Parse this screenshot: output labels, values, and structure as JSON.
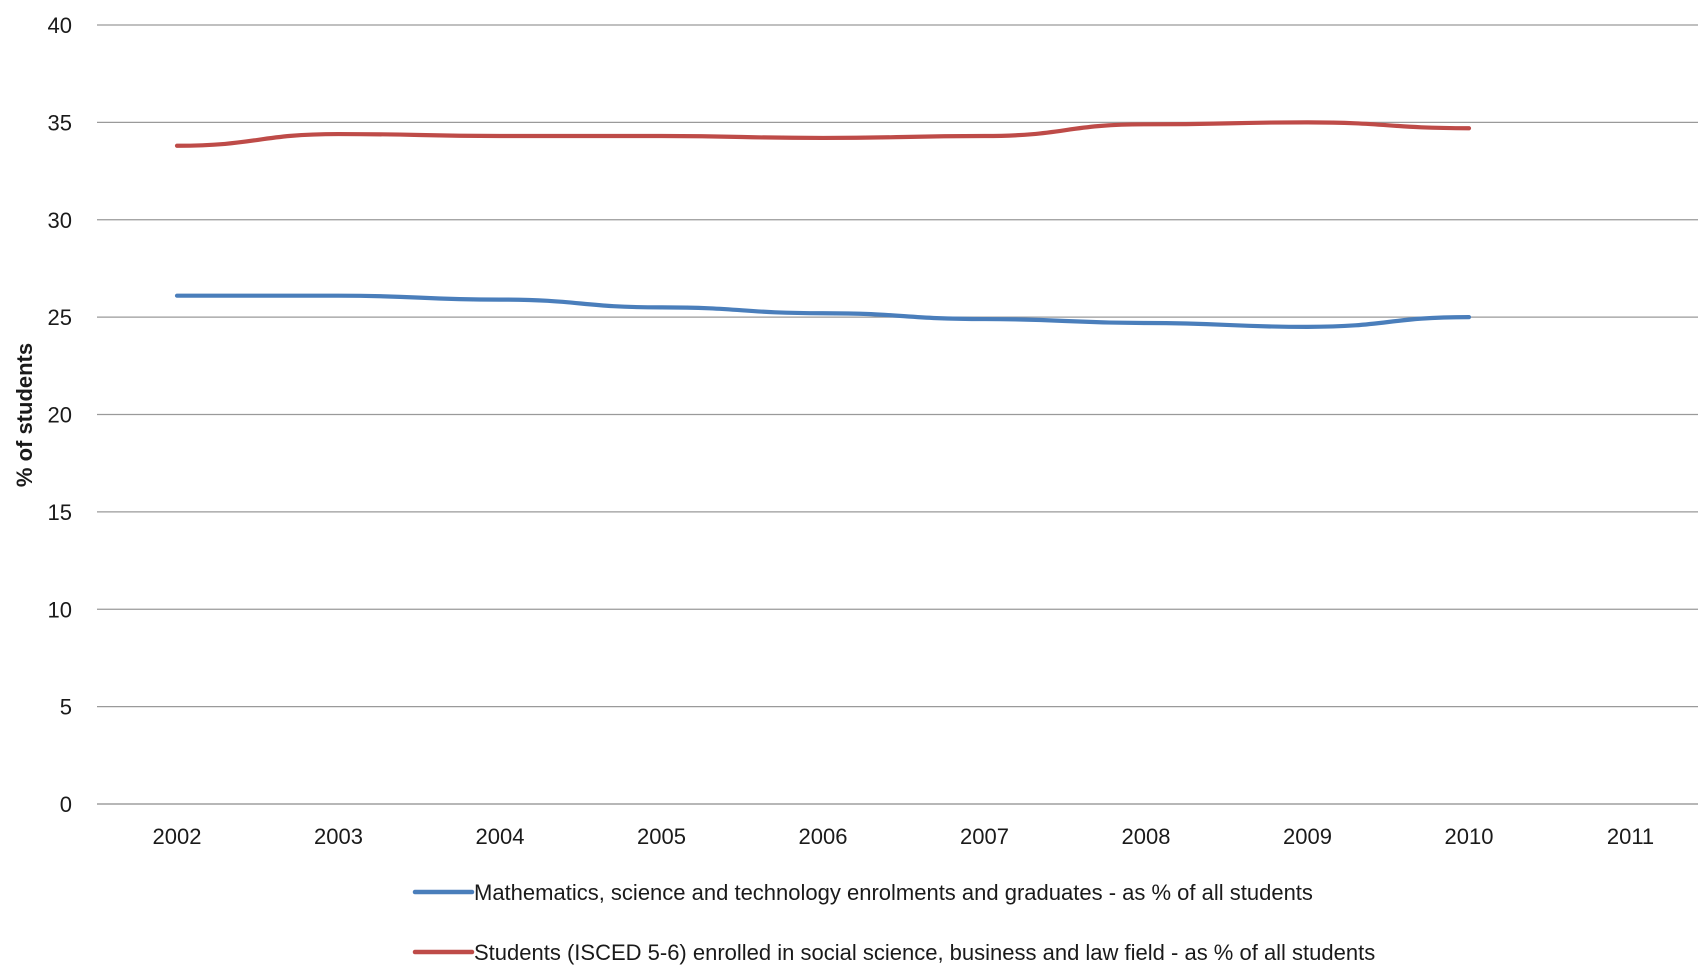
{
  "chart_data": {
    "type": "line",
    "title": "",
    "xlabel": "",
    "ylabel": "% of students",
    "categories": [
      "2002",
      "2003",
      "2004",
      "2005",
      "2006",
      "2007",
      "2008",
      "2009",
      "2010",
      "2011"
    ],
    "y_ticks": [
      0,
      5,
      10,
      15,
      20,
      25,
      30,
      35,
      40
    ],
    "ylim": [
      0,
      40
    ],
    "grid": true,
    "legend_position": "bottom",
    "series": [
      {
        "name": "Mathematics, science and technology enrolments and graduates - as % of all students",
        "color": "#4a7ebb",
        "values": [
          26.1,
          26.1,
          25.9,
          25.5,
          25.2,
          24.9,
          24.7,
          24.5,
          25.0,
          null
        ]
      },
      {
        "name": "Students (ISCED 5-6) enrolled in social science, business and law field - as % of all students",
        "color": "#be4b48",
        "values": [
          33.8,
          34.4,
          34.3,
          34.3,
          34.2,
          34.3,
          34.9,
          35.0,
          34.7,
          null
        ]
      }
    ]
  }
}
